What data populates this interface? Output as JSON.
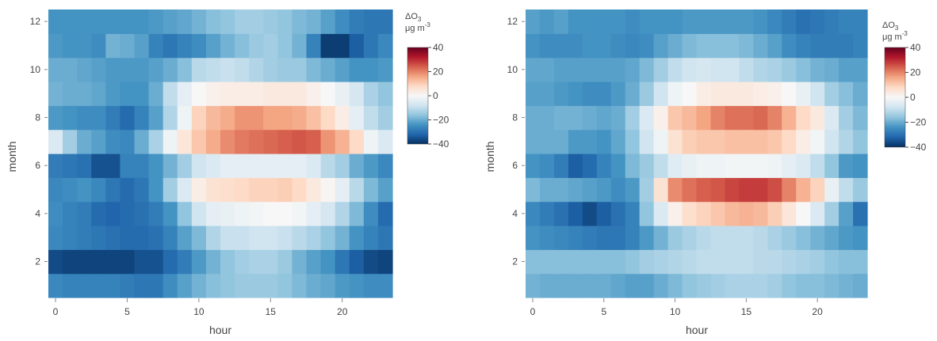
{
  "chart_data": [
    {
      "type": "heatmap",
      "xlabel": "hour",
      "ylabel": "month",
      "x": [
        0,
        1,
        2,
        3,
        4,
        5,
        6,
        7,
        8,
        9,
        10,
        11,
        12,
        13,
        14,
        15,
        16,
        17,
        18,
        19,
        20,
        21,
        22,
        23
      ],
      "y": [
        1,
        2,
        3,
        4,
        5,
        6,
        7,
        8,
        9,
        10,
        11,
        12
      ],
      "x_ticks": [
        "0",
        "5",
        "10",
        "15",
        "20"
      ],
      "y_ticks": [
        "2",
        "4",
        "6",
        "8",
        "10",
        "12"
      ],
      "colorbar": {
        "title_main": "ΔO",
        "title_sub": "3",
        "unit_main": "μg m",
        "unit_sup": "-3",
        "range": [
          -40,
          40
        ],
        "ticks": [
          "40",
          "20",
          "0",
          "−20",
          "−40"
        ],
        "colorscale": "RdBu"
      },
      "z": [
        [
          -26,
          -27,
          -27,
          -27,
          -27,
          -28,
          -29,
          -29,
          -25,
          -22,
          -19,
          -17,
          -16,
          -15,
          -15,
          -15,
          -16,
          -18,
          -20,
          -21,
          -23,
          -24,
          -25,
          -25
        ],
        [
          -36,
          -37,
          -37,
          -37,
          -37,
          -37,
          -35,
          -35,
          -31,
          -28,
          -23,
          -19,
          -16,
          -14,
          -13,
          -13,
          -15,
          -19,
          -22,
          -24,
          -29,
          -33,
          -36,
          -37
        ],
        [
          -26,
          -27,
          -28,
          -29,
          -30,
          -31,
          -31,
          -30,
          -27,
          -22,
          -18,
          -12,
          -9,
          -9,
          -8,
          -8,
          -9,
          -11,
          -13,
          -16,
          -19,
          -24,
          -27,
          -29
        ],
        [
          -25,
          -27,
          -28,
          -31,
          -32,
          -31,
          -30,
          -28,
          -24,
          -16,
          -8,
          -4,
          -3,
          -2,
          -1,
          0,
          0,
          -1,
          -4,
          -7,
          -12,
          -18,
          -25,
          -31
        ],
        [
          -26,
          -25,
          -24,
          -26,
          -29,
          -31,
          -29,
          -24,
          -14,
          -6,
          3,
          6,
          7,
          8,
          9,
          9,
          10,
          8,
          4,
          1,
          -4,
          -11,
          -18,
          -22
        ],
        [
          -28,
          -29,
          -30,
          -35,
          -35,
          -27,
          -27,
          -24,
          -19,
          -14,
          -8,
          -6,
          -4,
          -4,
          -4,
          -4,
          -4,
          -4,
          -6,
          -11,
          -14,
          -20,
          -23,
          -26
        ],
        [
          -6,
          -14,
          -20,
          -22,
          -25,
          -26,
          -20,
          -13,
          -2,
          5,
          11,
          15,
          19,
          21,
          22,
          23,
          24,
          25,
          24,
          18,
          14,
          8,
          -2,
          -6
        ],
        [
          -23,
          -24,
          -25,
          -25,
          -28,
          -31,
          -27,
          -22,
          -12,
          -2,
          9,
          13,
          15,
          18,
          18,
          16,
          16,
          15,
          12,
          8,
          3,
          -4,
          -10,
          -14
        ],
        [
          -19,
          -20,
          -20,
          -21,
          -23,
          -24,
          -24,
          -20,
          -10,
          -4,
          0,
          2,
          3,
          3,
          3,
          4,
          4,
          4,
          2,
          0,
          -3,
          -7,
          -13,
          -16
        ],
        [
          -20,
          -20,
          -21,
          -22,
          -23,
          -23,
          -23,
          -22,
          -20,
          -17,
          -11,
          -10,
          -9,
          -10,
          -12,
          -14,
          -15,
          -15,
          -18,
          -20,
          -22,
          -24,
          -24,
          -23
        ],
        [
          -23,
          -24,
          -24,
          -25,
          -19,
          -20,
          -22,
          -27,
          -29,
          -27,
          -25,
          -22,
          -19,
          -17,
          -15,
          -14,
          -16,
          -19,
          -27,
          -38,
          -38,
          -33,
          -29,
          -26
        ],
        [
          -24,
          -24,
          -24,
          -24,
          -24,
          -24,
          -24,
          -23,
          -22,
          -21,
          -19,
          -17,
          -16,
          -14,
          -14,
          -15,
          -16,
          -18,
          -19,
          -22,
          -25,
          -28,
          -29,
          -29
        ]
      ]
    },
    {
      "type": "heatmap",
      "xlabel": "hour",
      "ylabel": "month",
      "x": [
        0,
        1,
        2,
        3,
        4,
        5,
        6,
        7,
        8,
        9,
        10,
        11,
        12,
        13,
        14,
        15,
        16,
        17,
        18,
        19,
        20,
        21,
        22,
        23
      ],
      "y": [
        1,
        2,
        3,
        4,
        5,
        6,
        7,
        8,
        9,
        10,
        11,
        12
      ],
      "x_ticks": [
        "0",
        "5",
        "10",
        "15",
        "20"
      ],
      "y_ticks": [
        "2",
        "4",
        "6",
        "8",
        "10",
        "12"
      ],
      "colorbar": {
        "title_main": "ΔO",
        "title_sub": "3",
        "unit_main": "μg m",
        "unit_sup": "-3",
        "range": [
          -40,
          40
        ],
        "ticks": [
          "40",
          "20",
          "0",
          "−20",
          "−40"
        ],
        "colorscale": "RdBu"
      },
      "z": [
        [
          -19,
          -20,
          -20,
          -20,
          -20,
          -20,
          -21,
          -22,
          -22,
          -20,
          -18,
          -16,
          -15,
          -14,
          -13,
          -13,
          -13,
          -14,
          -16,
          -17,
          -17,
          -18,
          -19,
          -20
        ],
        [
          -17,
          -17,
          -17,
          -17,
          -17,
          -17,
          -17,
          -16,
          -14,
          -13,
          -12,
          -11,
          -10,
          -10,
          -10,
          -10,
          -11,
          -11,
          -12,
          -13,
          -14,
          -16,
          -17,
          -17
        ],
        [
          -24,
          -25,
          -26,
          -27,
          -28,
          -29,
          -29,
          -27,
          -23,
          -19,
          -15,
          -13,
          -11,
          -10,
          -10,
          -10,
          -11,
          -13,
          -15,
          -17,
          -19,
          -21,
          -23,
          -24
        ],
        [
          -26,
          -28,
          -30,
          -33,
          -36,
          -33,
          -30,
          -27,
          -16,
          -6,
          2,
          7,
          9,
          11,
          13,
          14,
          13,
          10,
          5,
          0,
          -6,
          -14,
          -22,
          -30
        ],
        [
          -18,
          -20,
          -20,
          -21,
          -22,
          -23,
          -25,
          -23,
          -14,
          6,
          19,
          22,
          24,
          25,
          27,
          28,
          28,
          26,
          20,
          14,
          9,
          -3,
          -10,
          -15
        ],
        [
          -24,
          -25,
          -28,
          -33,
          -31,
          -27,
          -24,
          -18,
          -15,
          -10,
          -5,
          -3,
          -2,
          -2,
          -1,
          -1,
          -1,
          -2,
          -4,
          -6,
          -10,
          -16,
          -23,
          -24
        ],
        [
          -20,
          -20,
          -20,
          -23,
          -23,
          -24,
          -21,
          -16,
          -8,
          -2,
          6,
          10,
          11,
          11,
          12,
          12,
          12,
          11,
          8,
          3,
          -1,
          -8,
          -12,
          -16
        ],
        [
          -20,
          -20,
          -19,
          -19,
          -20,
          -21,
          -20,
          -14,
          -6,
          2,
          11,
          13,
          16,
          20,
          22,
          22,
          23,
          20,
          14,
          8,
          4,
          -6,
          -14,
          -18
        ],
        [
          -22,
          -22,
          -23,
          -24,
          -25,
          -25,
          -23,
          -20,
          -15,
          -8,
          -2,
          0,
          3,
          4,
          4,
          4,
          3,
          2,
          0,
          -3,
          -8,
          -14,
          -17,
          -20
        ],
        [
          -21,
          -21,
          -22,
          -22,
          -22,
          -22,
          -22,
          -21,
          -18,
          -14,
          -10,
          -8,
          -7,
          -8,
          -8,
          -10,
          -12,
          -13,
          -15,
          -17,
          -19,
          -20,
          -22,
          -22
        ],
        [
          -24,
          -25,
          -25,
          -25,
          -24,
          -24,
          -25,
          -26,
          -25,
          -22,
          -20,
          -18,
          -17,
          -17,
          -17,
          -18,
          -20,
          -22,
          -25,
          -27,
          -28,
          -28,
          -28,
          -27
        ],
        [
          -22,
          -23,
          -22,
          -24,
          -24,
          -24,
          -24,
          -25,
          -24,
          -24,
          -24,
          -23,
          -23,
          -23,
          -23,
          -23,
          -24,
          -26,
          -28,
          -30,
          -29,
          -28,
          -27,
          -27
        ]
      ]
    }
  ]
}
